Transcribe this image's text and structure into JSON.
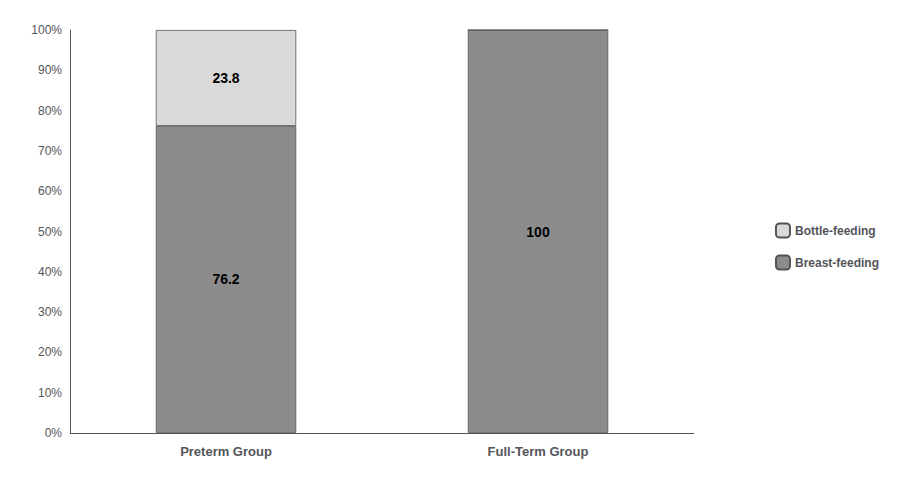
{
  "chart_data": {
    "type": "bar",
    "stacked": true,
    "categories": [
      "Preterm Group",
      "Full-Term Group"
    ],
    "series": [
      {
        "name": "Breast-feeding",
        "color": "#8c8c8c",
        "values": [
          76.2,
          100
        ]
      },
      {
        "name": "Bottle-feeding",
        "color": "#d9d9d9",
        "values": [
          23.8,
          0
        ],
        "value_labels": [
          "23.8",
          null
        ]
      }
    ],
    "ylim": [
      0,
      100
    ],
    "yticks": [
      {
        "value": 0,
        "label": "0%"
      },
      {
        "value": 10,
        "label": "10%"
      },
      {
        "value": 20,
        "label": "20%"
      },
      {
        "value": 30,
        "label": "30%"
      },
      {
        "value": 40,
        "label": "40%"
      },
      {
        "value": 50,
        "label": "50%"
      },
      {
        "value": 60,
        "label": "60%"
      },
      {
        "value": 70,
        "label": "70%"
      },
      {
        "value": 80,
        "label": "80%"
      },
      {
        "value": 90,
        "label": "90%"
      },
      {
        "value": 100,
        "label": "100%"
      }
    ],
    "grid": false,
    "data_labels": true,
    "legend": "right"
  }
}
